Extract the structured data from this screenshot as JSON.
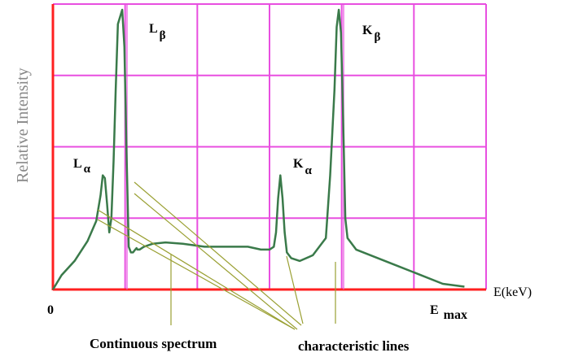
{
  "chart_data": {
    "type": "line",
    "ylabel": "Relative Intensity",
    "xlabel": "E(keV)",
    "x_origin_label": "0",
    "x_max_label": {
      "main": "E",
      "sub": "max"
    },
    "xlim": [
      0,
      1
    ],
    "ylim": [
      0,
      1
    ],
    "grid": true,
    "colors": {
      "curve": "#3a7a4a",
      "grid": "#e84fe0",
      "axis": "#ff2020",
      "leader": "#9aa033",
      "text": "#000000"
    },
    "series": [
      {
        "x": [
          0.0,
          0.02,
          0.05,
          0.08,
          0.1,
          0.11,
          0.115,
          0.12,
          0.125,
          0.13,
          0.135,
          0.14,
          0.145,
          0.15,
          0.16,
          0.165,
          0.17,
          0.175,
          0.18,
          0.185,
          0.19,
          0.193,
          0.195,
          0.2,
          0.21,
          0.23,
          0.26,
          0.3,
          0.35,
          0.4,
          0.45,
          0.48,
          0.5,
          0.51,
          0.515,
          0.52,
          0.525,
          0.53,
          0.535,
          0.54,
          0.55,
          0.57,
          0.6,
          0.63,
          0.64,
          0.65,
          0.655,
          0.66,
          0.665,
          0.67,
          0.675,
          0.68,
          0.7,
          0.75,
          0.8,
          0.85,
          0.9,
          0.95
        ],
        "values": [
          0.0,
          0.05,
          0.1,
          0.17,
          0.24,
          0.33,
          0.4,
          0.39,
          0.3,
          0.2,
          0.25,
          0.45,
          0.7,
          0.93,
          0.98,
          0.85,
          0.48,
          0.15,
          0.13,
          0.13,
          0.14,
          0.145,
          0.14,
          0.14,
          0.15,
          0.16,
          0.165,
          0.16,
          0.15,
          0.15,
          0.15,
          0.14,
          0.14,
          0.15,
          0.2,
          0.32,
          0.4,
          0.32,
          0.2,
          0.13,
          0.11,
          0.1,
          0.12,
          0.18,
          0.4,
          0.7,
          0.92,
          0.98,
          0.9,
          0.6,
          0.25,
          0.18,
          0.14,
          0.11,
          0.08,
          0.05,
          0.02,
          0.01
        ]
      }
    ],
    "peak_labels": [
      {
        "text": "L",
        "sub": "α"
      },
      {
        "text": "L",
        "sub": "β"
      },
      {
        "text": "K",
        "sub": "α"
      },
      {
        "text": "K",
        "sub": "β"
      }
    ],
    "annotations": {
      "continuous": "Continuous spectrum",
      "characteristic": "characteristic lines"
    }
  }
}
